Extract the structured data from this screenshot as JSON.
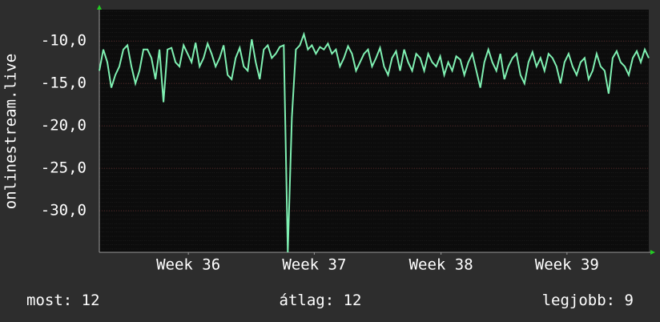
{
  "chart_data": {
    "type": "line",
    "y_label": "onlinestream.live",
    "color": "#7ff0b2",
    "values": [
      -13.5,
      -11,
      -12.5,
      -15.5,
      -14,
      -13,
      -11,
      -10.5,
      -13,
      -15,
      -13.5,
      -11,
      -11,
      -12,
      -14.5,
      -11,
      -17.2,
      -11,
      -10.8,
      -12.5,
      -13,
      -10.5,
      -11.5,
      -12.5,
      -10.2,
      -13,
      -12,
      -10.3,
      -11.5,
      -13,
      -12,
      -10.5,
      -14,
      -14.5,
      -12,
      -10.8,
      -13,
      -13.5,
      -9.8,
      -12.5,
      -14.5,
      -11,
      -10.5,
      -12,
      -11.5,
      -10.7,
      -10.5,
      -34.9,
      -19,
      -11,
      -10.5,
      -9.2,
      -11,
      -10.5,
      -11.5,
      -10.7,
      -11,
      -10.3,
      -11.5,
      -11,
      -13,
      -12,
      -10.6,
      -11.5,
      -13.5,
      -12.5,
      -11.5,
      -11,
      -13,
      -12,
      -10.8,
      -13,
      -14,
      -12,
      -11.2,
      -13.5,
      -11,
      -12.5,
      -13.5,
      -11.5,
      -12,
      -13.5,
      -11.5,
      -12.5,
      -13,
      -11.8,
      -14,
      -12.5,
      -13.5,
      -11.8,
      -12.2,
      -14,
      -12.5,
      -11.5,
      -13.5,
      -15.5,
      -12.5,
      -11,
      -12.5,
      -13.5,
      -11.5,
      -14.5,
      -13,
      -12,
      -11.5,
      -14,
      -15,
      -12.5,
      -11.3,
      -13,
      -12,
      -13.5,
      -11.5,
      -12,
      -13,
      -15,
      -12.5,
      -11.5,
      -13,
      -14,
      -12.5,
      -12,
      -14.5,
      -13.5,
      -11.5,
      -13,
      -13.5,
      -16.2,
      -12,
      -11.2,
      -12.5,
      -13,
      -14,
      -12,
      -11.2,
      -12.5,
      -11,
      -12
    ],
    "xlim": [
      0,
      137
    ],
    "xticks": [
      {
        "value": 22.2,
        "label": "Week 36"
      },
      {
        "value": 53.6,
        "label": "Week 37"
      },
      {
        "value": 85.2,
        "label": "Week 38"
      },
      {
        "value": 116.6,
        "label": "Week 39"
      }
    ],
    "ylim": [
      -34.9,
      -6.3
    ],
    "yticks": [
      {
        "value": -10,
        "label": "-10,0"
      },
      {
        "value": -15,
        "label": "-15,0"
      },
      {
        "value": -20,
        "label": "-20,0"
      },
      {
        "value": -25,
        "label": "-25,0"
      },
      {
        "value": -30,
        "label": "-30,0"
      }
    ],
    "grid": true,
    "stats": [
      {
        "label": "most:",
        "value": 12
      },
      {
        "label": "átlag:",
        "value": 12
      },
      {
        "label": "legjobb:",
        "value": 9
      }
    ]
  }
}
